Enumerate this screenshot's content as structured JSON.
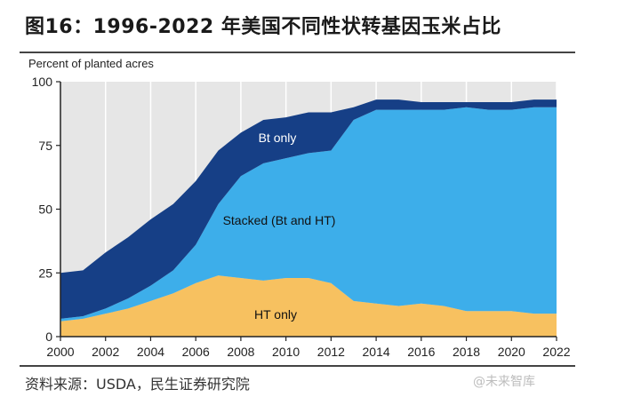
{
  "header": {
    "title": "图16：1996-2022 年美国不同性状转基因玉米占比"
  },
  "footer": {
    "source": "资料来源：USDA，民生证券研究院",
    "watermark": "@未来智库"
  },
  "chart_data": {
    "type": "area",
    "stacked": true,
    "ylabel": "Percent of planted acres",
    "ylim": [
      0,
      100
    ],
    "xlim": [
      2000,
      2022
    ],
    "yticks": [
      0,
      25,
      50,
      75,
      100
    ],
    "xticks": [
      2000,
      2002,
      2004,
      2006,
      2008,
      2010,
      2012,
      2014,
      2016,
      2018,
      2020,
      2022
    ],
    "x": [
      2000,
      2001,
      2002,
      2003,
      2004,
      2005,
      2006,
      2007,
      2008,
      2009,
      2010,
      2011,
      2012,
      2013,
      2014,
      2015,
      2016,
      2017,
      2018,
      2019,
      2020,
      2021,
      2022
    ],
    "series": [
      {
        "name": "HT only",
        "color": "#f7c160",
        "values": [
          6,
          7,
          9,
          11,
          14,
          17,
          21,
          24,
          23,
          22,
          23,
          23,
          21,
          14,
          13,
          12,
          13,
          12,
          10,
          10,
          10,
          9,
          9
        ]
      },
      {
        "name": "Stacked (Bt and HT)",
        "color": "#3daeea",
        "values": [
          1,
          1,
          2,
          4,
          6,
          9,
          15,
          28,
          40,
          46,
          47,
          49,
          52,
          71,
          76,
          77,
          76,
          77,
          80,
          79,
          79,
          81,
          81
        ]
      },
      {
        "name": "Bt only",
        "color": "#163f86",
        "values": [
          18,
          18,
          22,
          24,
          26,
          26,
          25,
          21,
          17,
          17,
          16,
          16,
          15,
          5,
          4,
          4,
          3,
          3,
          2,
          3,
          3,
          3,
          3
        ]
      }
    ],
    "colors": {
      "background": "#e6e6e6",
      "gridline": "#ffffff",
      "axis": "#222222",
      "label_light": "#ffffff",
      "label_dark": "#111111"
    }
  }
}
